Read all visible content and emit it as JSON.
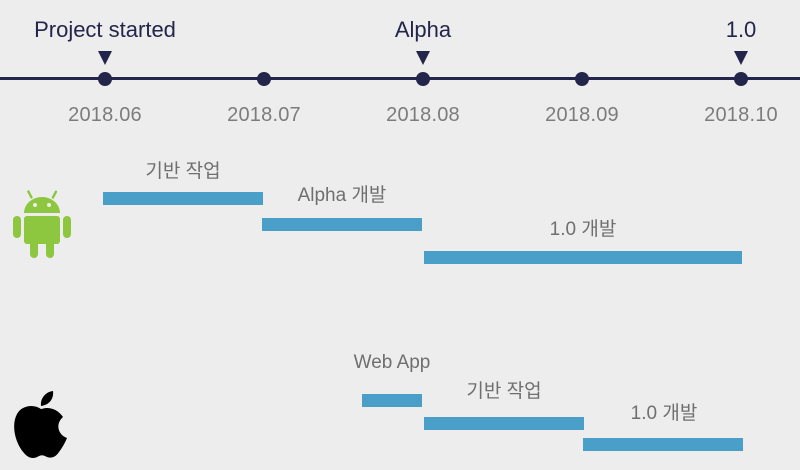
{
  "timeline": {
    "ticks": [
      "2018.06",
      "2018.07",
      "2018.08",
      "2018.09",
      "2018.10"
    ],
    "milestones": [
      {
        "label": "Project started",
        "tick": 0
      },
      {
        "label": "Alpha",
        "tick": 2
      },
      {
        "label": "1.0",
        "tick": 4
      }
    ]
  },
  "platforms": [
    {
      "icon": "android-icon",
      "color": "#8dc63f",
      "tasks": [
        {
          "label": "기반 작업",
          "start": "2018.06",
          "end": "2018.07"
        },
        {
          "label": "Alpha 개발",
          "start": "2018.07",
          "end": "2018.08"
        },
        {
          "label": "1.0 개발",
          "start": "2018.08",
          "end": "2018.10"
        }
      ]
    },
    {
      "icon": "apple-icon",
      "color": "#000000",
      "tasks": [
        {
          "label": "Web App",
          "start": "2018.07 (late)",
          "end": "2018.08"
        },
        {
          "label": "기반 작업",
          "start": "2018.08",
          "end": "2018.09"
        },
        {
          "label": "1.0 개발",
          "start": "2018.09",
          "end": "2018.10"
        }
      ]
    }
  ],
  "colors": {
    "axis": "#23254a",
    "bar": "#4a9fc8",
    "background": "#ededed"
  }
}
